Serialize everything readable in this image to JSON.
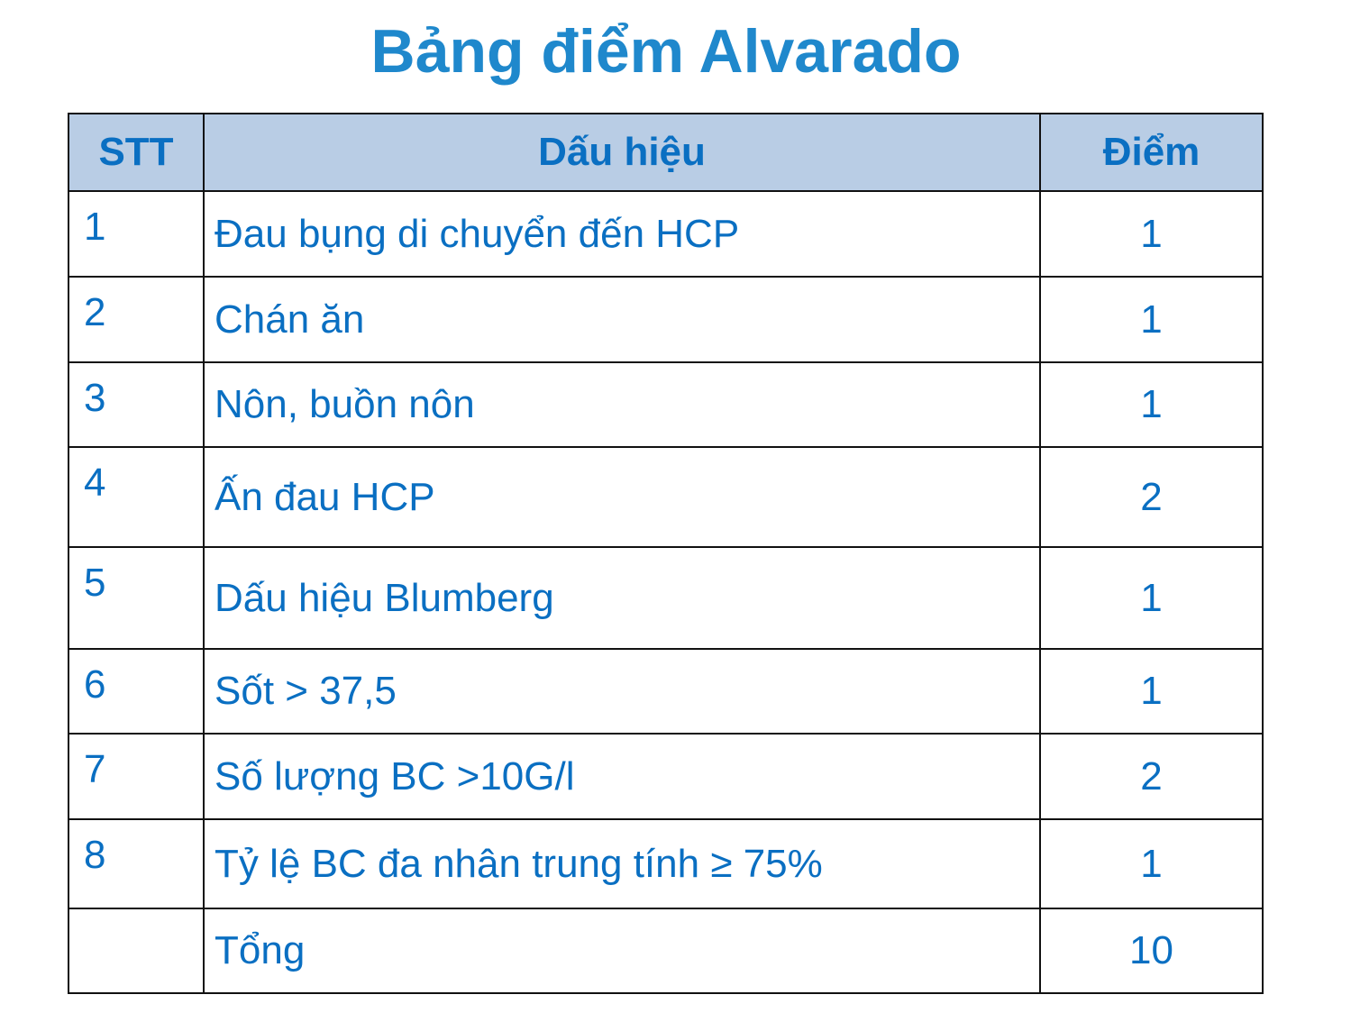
{
  "title": "Bảng điểm Alvarado",
  "table": {
    "headers": [
      "STT",
      "Dấu hiệu",
      "Điểm"
    ],
    "rows": [
      {
        "stt": "1",
        "sign": "Đau bụng di chuyển đến HCP",
        "score": "1"
      },
      {
        "stt": "2",
        "sign": "Chán ăn",
        "score": "1"
      },
      {
        "stt": "3",
        "sign": "Nôn, buồn nôn",
        "score": "1"
      },
      {
        "stt": "4",
        "sign": "Ấn đau HCP",
        "score": "2"
      },
      {
        "stt": "5",
        "sign": "Dấu hiệu Blumberg",
        "score": "1"
      },
      {
        "stt": "6",
        "sign": "Sốt > 37,5",
        "score": "1"
      },
      {
        "stt": "7",
        "sign": "Số lượng BC >10G/l",
        "score": "2"
      },
      {
        "stt": "8",
        "sign": "Tỷ lệ BC đa nhân trung tính ≥ 75%",
        "score": "1"
      },
      {
        "stt": "",
        "sign": "Tổng",
        "score": "10"
      }
    ]
  },
  "colors": {
    "title": "#1f88cc",
    "text": "#0a6fc2",
    "header_bg": "#b9cde5"
  }
}
